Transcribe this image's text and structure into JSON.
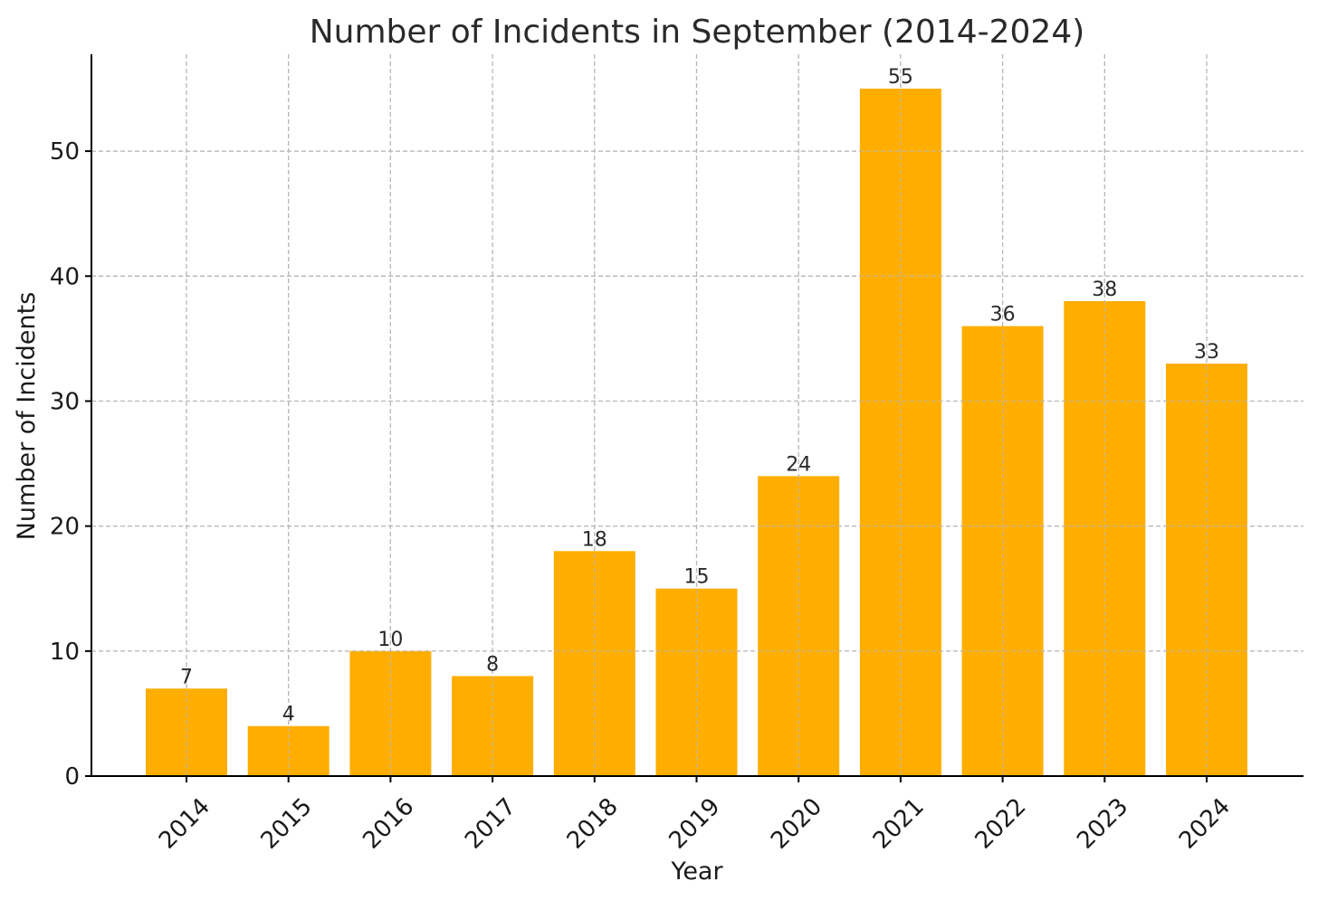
{
  "chart_data": {
    "type": "bar",
    "title": "Number of Incidents in September (2014-2024)",
    "xlabel": "Year",
    "ylabel": "Number of Incidents",
    "categories": [
      "2014",
      "2015",
      "2016",
      "2017",
      "2018",
      "2019",
      "2020",
      "2021",
      "2022",
      "2023",
      "2024"
    ],
    "values": [
      7,
      4,
      10,
      8,
      18,
      15,
      24,
      55,
      36,
      38,
      33
    ],
    "ylim": [
      0,
      57.75
    ],
    "yticks": [
      0,
      10,
      20,
      30,
      40,
      50
    ],
    "grid": true,
    "bar_color": "#ffae00",
    "grid_color": "#b8b8b8"
  }
}
